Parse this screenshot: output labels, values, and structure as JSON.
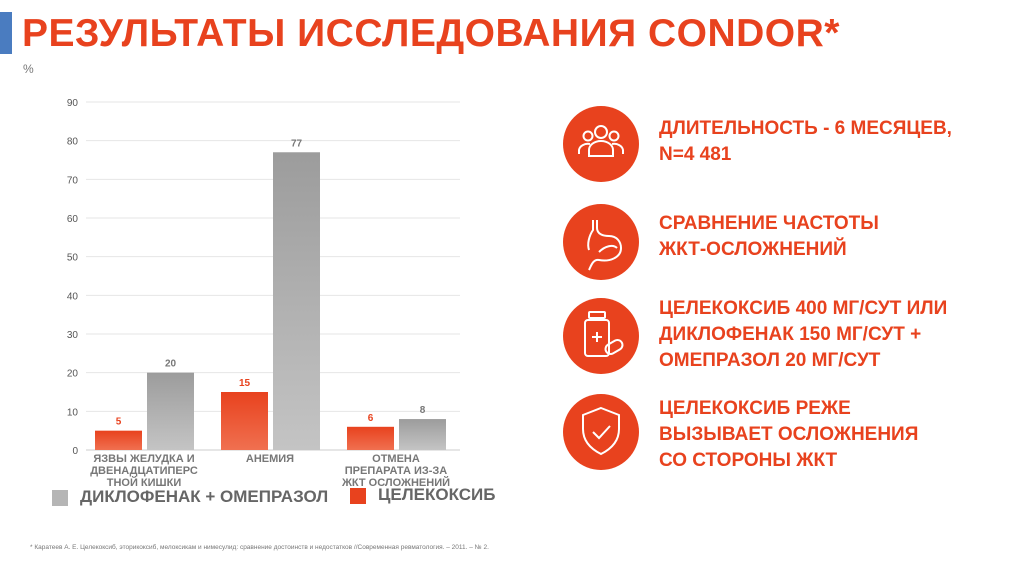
{
  "header": {
    "title": "РЕЗУЛЬТАТЫ ИССЛЕДОВАНИЯ CONDOR*"
  },
  "chart_data": {
    "type": "bar",
    "ylabel": "%",
    "ylim": [
      0,
      90
    ],
    "yticks": [
      0,
      10,
      20,
      30,
      40,
      50,
      60,
      70,
      80,
      90
    ],
    "grid": true,
    "categories": [
      "ЯЗВЫ ЖЕЛУДКА И ДВЕНАДЦАТИПЕРС ТНОЙ КИШКИ",
      "АНЕМИЯ",
      "ОТМЕНА ПРЕПАРАТА ИЗ-ЗА ЖКТ ОСЛОЖНЕНИЙ"
    ],
    "category_lines": [
      [
        "ЯЗВЫ ЖЕЛУДКА И",
        "ДВЕНАДЦАТИПЕРС",
        "ТНОЙ КИШКИ"
      ],
      [
        "АНЕМИЯ"
      ],
      [
        "ОТМЕНА",
        "ПРЕПАРАТА ИЗ-ЗА",
        "ЖКТ ОСЛОЖНЕНИЙ"
      ]
    ],
    "series": [
      {
        "name": "ЦЕЛЕКОКСИБ",
        "color": "#e8421e",
        "values": [
          5,
          15,
          6
        ]
      },
      {
        "name": "ДИКЛОФЕНАК + ОМЕПРАЗОЛ",
        "color": "#a9a9a9",
        "values": [
          20,
          77,
          8
        ]
      }
    ],
    "legend": "bottom"
  },
  "legend": {
    "gray": "ДИКЛОФЕНАК + ОМЕПРАЗОЛ",
    "orange": "ЦЕЛЕКОКСИБ"
  },
  "info": [
    {
      "icon": "people-icon",
      "lines": [
        "ДЛИТЕЛЬНОСТЬ - 6 МЕСЯЦЕВ,",
        "N=4 481"
      ]
    },
    {
      "icon": "stomach-icon",
      "lines": [
        "СРАВНЕНИЕ ЧАСТОТЫ",
        "ЖКТ-ОСЛОЖНЕНИЙ"
      ]
    },
    {
      "icon": "medicine-icon",
      "lines": [
        "ЦЕЛЕКОКСИБ 400 МГ/СУТ ИЛИ",
        "ДИКЛОФЕНАК 150 МГ/СУТ +",
        "ОМЕПРАЗОЛ 20 МГ/СУТ"
      ]
    },
    {
      "icon": "shield-check-icon",
      "lines": [
        "ЦЕЛЕКОКСИБ РЕЖЕ",
        "ВЫЗЫВАЕТ ОСЛОЖНЕНИЯ",
        "СО СТОРОНЫ ЖКТ"
      ]
    }
  ],
  "footnote": "* Каратеев А. Е. Целекоксиб, эторикоксиб, мелоксикам и нимесулид: сравнение достоинств и недостатков //Современная ревматология. – 2011. – № 2."
}
